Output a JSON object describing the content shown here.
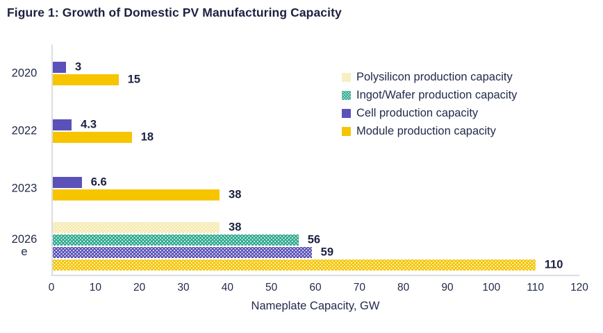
{
  "chart_data": {
    "type": "bar",
    "orientation": "horizontal",
    "title": "Figure 1: Growth of Domestic PV Manufacturing Capacity",
    "xlabel": "Nameplate Capacity, GW",
    "xlim": [
      0,
      120
    ],
    "xticks": [
      0,
      10,
      20,
      30,
      40,
      50,
      60,
      70,
      80,
      90,
      100,
      110,
      120
    ],
    "grid": false,
    "legend_position": "upper right inside",
    "categories": [
      {
        "label": "2020",
        "patterned": false
      },
      {
        "label": "2022",
        "patterned": false
      },
      {
        "label": "2023",
        "patterned": false
      },
      {
        "label": "2026\ne",
        "patterned": true
      }
    ],
    "series": [
      {
        "name": "Polysilicon production capacity",
        "color": "#f6e9ae",
        "legend_patterned": true,
        "values": [
          null,
          null,
          null,
          38
        ]
      },
      {
        "name": "Ingot/Wafer production capacity",
        "color": "#2aa88b",
        "legend_patterned": true,
        "values": [
          null,
          null,
          null,
          56
        ]
      },
      {
        "name": "Cell production capacity",
        "color": "#5b51b8",
        "legend_patterned": false,
        "values": [
          3,
          4.3,
          6.6,
          59
        ]
      },
      {
        "name": "Module production capacity",
        "color": "#f6c500",
        "legend_patterned": false,
        "values": [
          15,
          18,
          38,
          110
        ]
      }
    ],
    "value_labels": {
      "2020": {
        "Cell production capacity": "3",
        "Module production capacity": "15"
      },
      "2022": {
        "Cell production capacity": "4.3",
        "Module production capacity": "18"
      },
      "2023": {
        "Cell production capacity": "6.6",
        "Module production capacity": "38"
      },
      "2026e": {
        "Polysilicon production capacity": "38",
        "Ingot/Wafer production capacity": "56",
        "Cell production capacity": "59",
        "Module production capacity": "110"
      }
    },
    "colors": {
      "text_dark_navy": "#1b2140",
      "axis_gray": "#dadde3"
    }
  }
}
